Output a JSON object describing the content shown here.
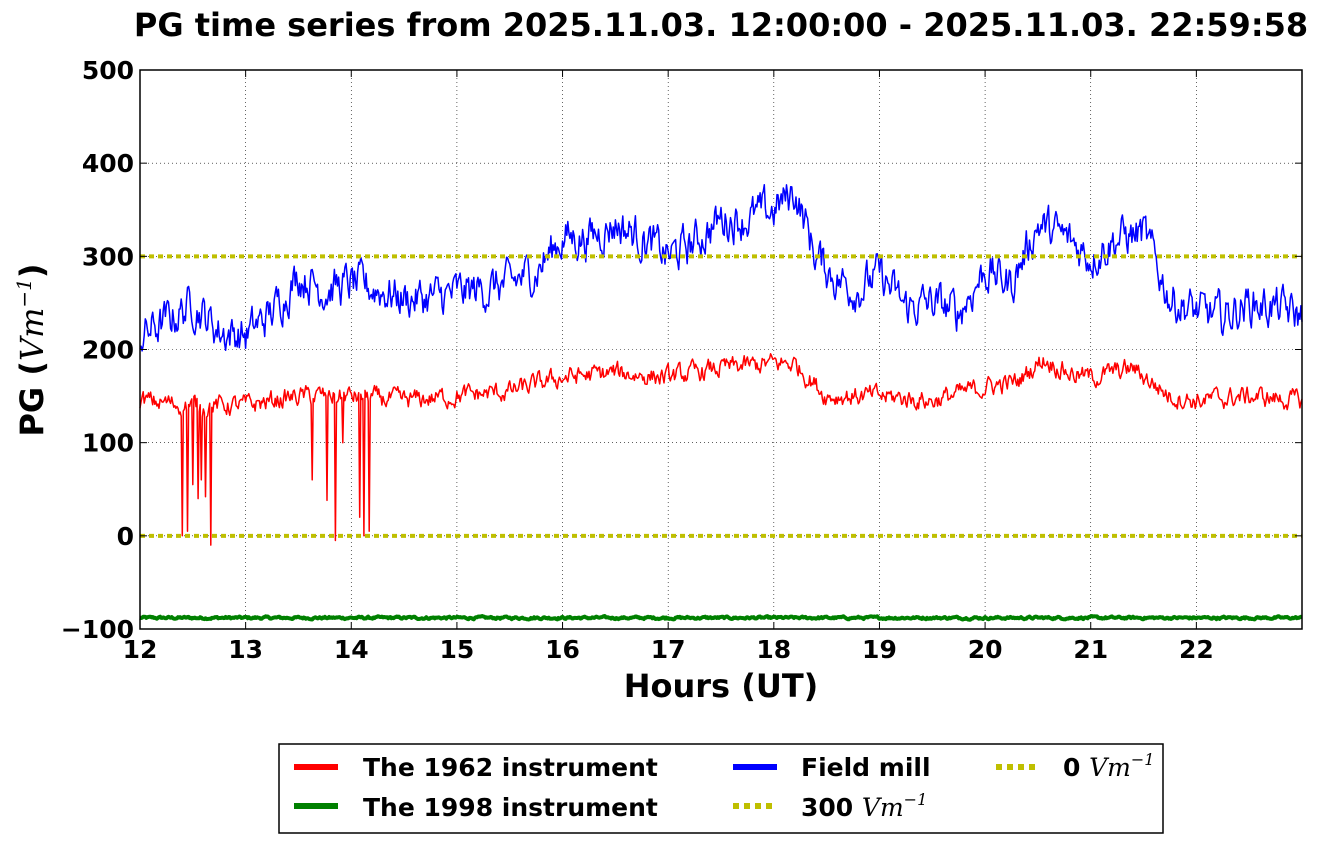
{
  "chart_data": {
    "type": "line",
    "title": "PG time series from 2025.11.03. 12:00:00 - 2025.11.03. 22:59:58",
    "xlabel": "Hours (UT)",
    "ylabel_prefix": "PG (",
    "ylabel_unit": "Vm",
    "ylabel_exp": "−1",
    "ylabel_suffix": ")",
    "xlim": [
      12,
      23
    ],
    "ylim": [
      -100,
      500
    ],
    "xticks": [
      12,
      13,
      14,
      15,
      16,
      17,
      18,
      19,
      20,
      21,
      22
    ],
    "yticks": [
      -100,
      0,
      100,
      200,
      300,
      400,
      500
    ],
    "ytick_labels": [
      "−100",
      "0",
      "100",
      "200",
      "300",
      "400",
      "500"
    ],
    "grid": true,
    "legend_position": "below plot",
    "legend": [
      {
        "label": "The 1962 instrument",
        "color": "#ff0000",
        "style": "solid",
        "unit": "",
        "exp": ""
      },
      {
        "label": "The 1998 instrument",
        "color": "#008000",
        "style": "solid",
        "unit": "",
        "exp": ""
      },
      {
        "label": "Field mill",
        "color": "#0000ff",
        "style": "solid",
        "unit": "",
        "exp": ""
      },
      {
        "label": "300 ",
        "color": "#bfbf00",
        "style": "dotted",
        "unit": "Vm",
        "exp": "−1"
      },
      {
        "label": "0 ",
        "color": "#bfbf00",
        "style": "dotted",
        "unit": "Vm",
        "exp": "−1"
      }
    ],
    "series": [
      {
        "name": "Field mill",
        "color": "#0000ff",
        "x": [
          12.0,
          12.25,
          12.5,
          12.75,
          13.0,
          13.25,
          13.5,
          13.75,
          14.0,
          14.25,
          14.5,
          14.75,
          15.0,
          15.25,
          15.5,
          15.75,
          16.0,
          16.25,
          16.5,
          16.75,
          17.0,
          17.25,
          17.5,
          17.75,
          18.0,
          18.2,
          18.4,
          18.6,
          18.8,
          19.0,
          19.25,
          19.5,
          19.75,
          20.0,
          20.25,
          20.5,
          20.75,
          21.0,
          21.25,
          21.5,
          21.75,
          22.0,
          22.25,
          22.5,
          22.75,
          23.0
        ],
        "y": [
          215,
          230,
          250,
          220,
          215,
          240,
          280,
          265,
          270,
          265,
          255,
          255,
          260,
          265,
          270,
          285,
          320,
          320,
          335,
          320,
          300,
          315,
          340,
          340,
          350,
          370,
          300,
          275,
          265,
          280,
          245,
          250,
          240,
          285,
          270,
          335,
          320,
          300,
          320,
          325,
          255,
          240,
          235,
          250,
          245,
          235
        ],
        "noise": 25
      },
      {
        "name": "The 1962 instrument",
        "color": "#ff0000",
        "x": [
          12.0,
          12.5,
          13.0,
          13.5,
          14.0,
          14.5,
          15.0,
          15.5,
          16.0,
          16.5,
          17.0,
          17.5,
          18.0,
          18.2,
          18.5,
          19.0,
          19.5,
          20.0,
          20.3,
          20.55,
          20.8,
          21.0,
          21.4,
          21.75,
          22.0,
          22.5,
          23.0
        ],
        "y": [
          145,
          140,
          140,
          150,
          150,
          145,
          150,
          155,
          170,
          175,
          170,
          180,
          185,
          185,
          150,
          150,
          145,
          160,
          165,
          190,
          175,
          170,
          180,
          150,
          145,
          150,
          145
        ],
        "noise": 12,
        "spikes": [
          {
            "x": 12.4,
            "y": 0
          },
          {
            "x": 12.45,
            "y": 5
          },
          {
            "x": 12.5,
            "y": 55
          },
          {
            "x": 12.55,
            "y": 40
          },
          {
            "x": 12.58,
            "y": 60
          },
          {
            "x": 12.62,
            "y": 42
          },
          {
            "x": 12.67,
            "y": -10
          },
          {
            "x": 13.63,
            "y": 60
          },
          {
            "x": 13.77,
            "y": 38
          },
          {
            "x": 13.85,
            "y": -5
          },
          {
            "x": 13.92,
            "y": 100
          },
          {
            "x": 14.08,
            "y": 20
          },
          {
            "x": 14.12,
            "y": 0
          },
          {
            "x": 14.17,
            "y": 5
          }
        ]
      },
      {
        "name": "The 1998 instrument",
        "color": "#008000",
        "x": [
          12.0,
          23.0
        ],
        "y": [
          -88,
          -88
        ],
        "noise": 1.5
      },
      {
        "name": "300 Vm−1",
        "color": "#bfbf00",
        "x": [
          12.0,
          23.0
        ],
        "y": [
          300,
          300
        ],
        "dashed": true
      },
      {
        "name": "0 Vm−1",
        "color": "#bfbf00",
        "x": [
          12.0,
          23.0
        ],
        "y": [
          0,
          0
        ],
        "dashed": true
      }
    ]
  }
}
